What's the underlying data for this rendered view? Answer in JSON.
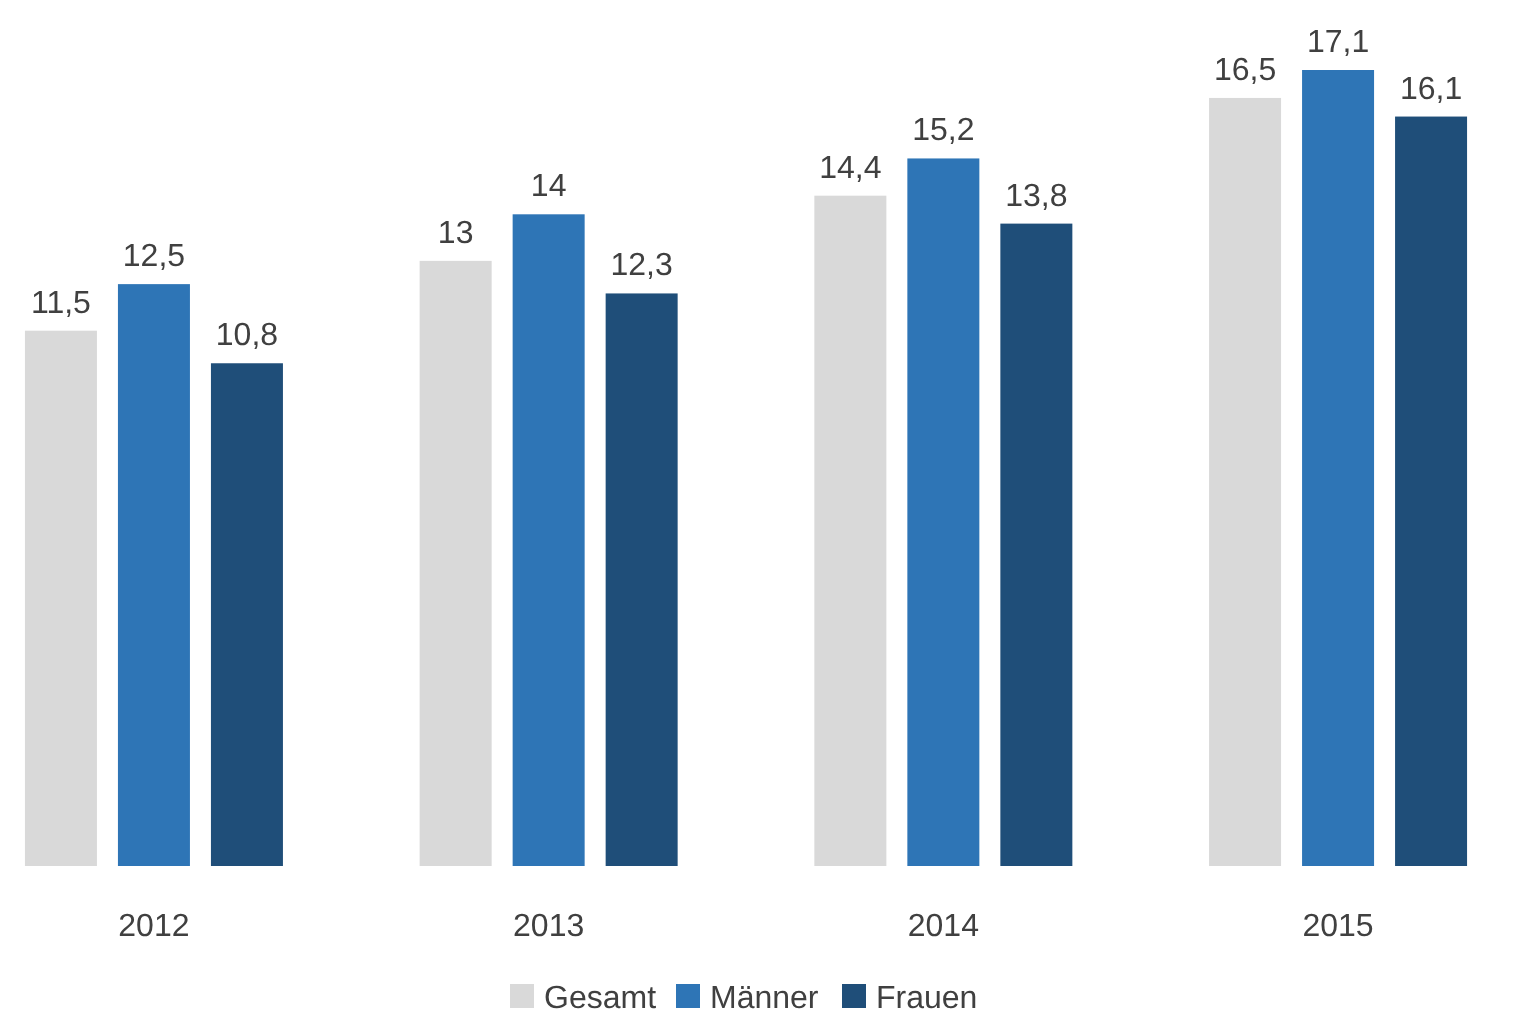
{
  "chart_data": {
    "type": "bar",
    "categories": [
      "2012",
      "2013",
      "2014",
      "2015"
    ],
    "series": [
      {
        "name": "Gesamt",
        "color": "#d9d9d9",
        "values": [
          11.5,
          13,
          14.4,
          16.5
        ],
        "value_labels": [
          "11,5",
          "13",
          "14,4",
          "16,5"
        ]
      },
      {
        "name": "Männer",
        "color": "#2e75b6",
        "values": [
          12.5,
          14,
          15.2,
          17.1
        ],
        "value_labels": [
          "12,5",
          "14",
          "15,2",
          "17,1"
        ]
      },
      {
        "name": "Frauen",
        "color": "#1f4e79",
        "values": [
          10.8,
          12.3,
          13.8,
          16.1
        ],
        "value_labels": [
          "10,8",
          "12,3",
          "13,8",
          "16,1"
        ]
      }
    ],
    "legend": "bottom",
    "grid": false
  }
}
